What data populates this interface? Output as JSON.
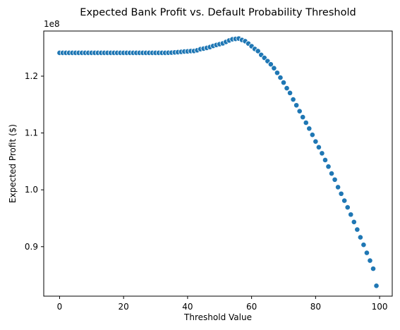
{
  "chart_data": {
    "type": "scatter",
    "title": "Expected Bank Profit vs. Default Probability Threshold",
    "xlabel": "Threshold Value",
    "ylabel": "Expected Profit ($)",
    "y_offset_label": "1e8",
    "xlim": [
      -4.95,
      103.95
    ],
    "ylim": [
      0.8129,
      1.2794
    ],
    "x_ticks": [
      0,
      20,
      40,
      60,
      80,
      100
    ],
    "x_tick_labels": [
      "0",
      "20",
      "40",
      "60",
      "80",
      "100"
    ],
    "y_ticks": [
      0.9,
      1.0,
      1.1,
      1.2
    ],
    "y_tick_labels": [
      "0.9",
      "1.0",
      "1.1",
      "1.2"
    ],
    "grid": false,
    "legend": "none",
    "point_color": "#1f77b4",
    "x": [
      0,
      1,
      2,
      3,
      4,
      5,
      6,
      7,
      8,
      9,
      10,
      11,
      12,
      13,
      14,
      15,
      16,
      17,
      18,
      19,
      20,
      21,
      22,
      23,
      24,
      25,
      26,
      27,
      28,
      29,
      30,
      31,
      32,
      33,
      34,
      35,
      36,
      37,
      38,
      39,
      40,
      41,
      42,
      43,
      44,
      45,
      46,
      47,
      48,
      49,
      50,
      51,
      52,
      53,
      54,
      55,
      56,
      57,
      58,
      59,
      60,
      61,
      62,
      63,
      64,
      65,
      66,
      67,
      68,
      69,
      70,
      71,
      72,
      73,
      74,
      75,
      76,
      77,
      78,
      79,
      80,
      81,
      82,
      83,
      84,
      85,
      86,
      87,
      88,
      89,
      90,
      91,
      92,
      93,
      94,
      95,
      96,
      97,
      98,
      99
    ],
    "y": [
      1.241,
      1.241,
      1.241,
      1.241,
      1.241,
      1.241,
      1.241,
      1.241,
      1.241,
      1.241,
      1.241,
      1.241,
      1.241,
      1.241,
      1.241,
      1.241,
      1.241,
      1.241,
      1.241,
      1.241,
      1.241,
      1.241,
      1.241,
      1.241,
      1.241,
      1.241,
      1.241,
      1.241,
      1.241,
      1.241,
      1.241,
      1.241,
      1.241,
      1.241,
      1.2412,
      1.2414,
      1.2418,
      1.2422,
      1.2427,
      1.2433,
      1.2436,
      1.2442,
      1.2443,
      1.2455,
      1.2475,
      1.2485,
      1.2497,
      1.2512,
      1.2532,
      1.2549,
      1.2563,
      1.2577,
      1.2603,
      1.2628,
      1.2649,
      1.2655,
      1.2662,
      1.2637,
      1.2615,
      1.2573,
      1.2527,
      1.2478,
      1.2441,
      1.2375,
      1.2322,
      1.2264,
      1.2209,
      1.214,
      1.2059,
      1.1974,
      1.1887,
      1.1788,
      1.1704,
      1.159,
      1.1488,
      1.1384,
      1.1279,
      1.1181,
      1.1078,
      1.0968,
      1.085,
      1.0749,
      1.0643,
      1.0524,
      1.0409,
      1.0287,
      1.0179,
      1.0047,
      0.9931,
      0.9809,
      0.9691,
      0.9565,
      0.9434,
      0.9301,
      0.9164,
      0.9032,
      0.8891,
      0.8755,
      0.8612,
      0.8311
    ]
  }
}
